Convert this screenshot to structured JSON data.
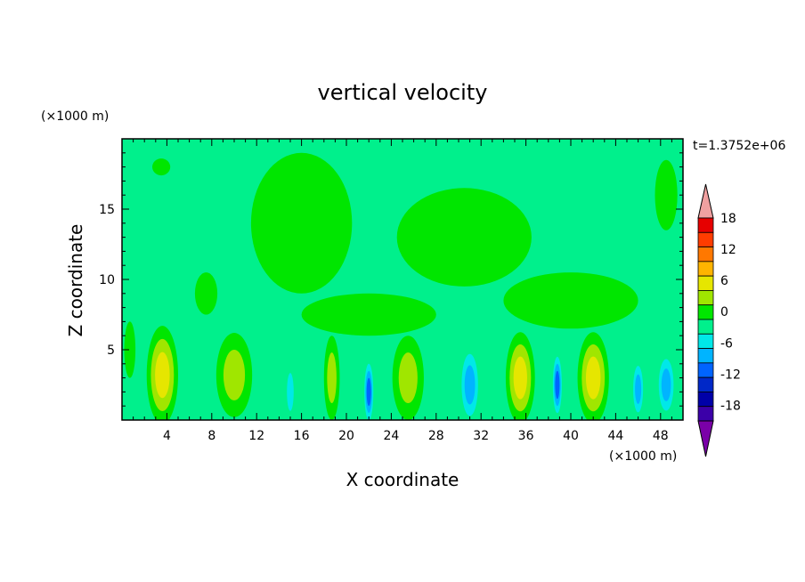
{
  "chart_data": {
    "type": "heatmap",
    "title": "vertical velocity",
    "xlabel": "X coordinate",
    "ylabel": "Z coordinate",
    "x_unit": "(×1000 m)",
    "y_unit": "(×1000 m)",
    "time_label": "t=1.3752e+06",
    "xlim": [
      0,
      50
    ],
    "ylim": [
      0,
      20
    ],
    "x_ticks": [
      4,
      8,
      12,
      16,
      20,
      24,
      28,
      32,
      36,
      40,
      44,
      48
    ],
    "y_ticks": [
      5,
      10,
      15
    ],
    "colorbar": {
      "ticks": [
        18,
        12,
        6,
        0,
        -6,
        -12,
        -18
      ],
      "levels": [
        -21,
        -18,
        -15,
        -12,
        -9,
        -6,
        -3,
        0,
        3,
        6,
        9,
        12,
        15,
        18,
        21
      ],
      "colors": [
        "#7a00a8",
        "#3b00a8",
        "#0000a8",
        "#0028c8",
        "#0064ff",
        "#00b4ff",
        "#00e8e8",
        "#00f08c",
        "#00e600",
        "#a0e600",
        "#e6e600",
        "#ffb400",
        "#ff7800",
        "#ff3c00",
        "#e60000",
        "#f0a0a0"
      ]
    },
    "background_color": "#00f08c",
    "features": [
      {
        "x": 3.6,
        "z": 3.2,
        "w": 2.8,
        "h": 7.0,
        "v": 8
      },
      {
        "x": 10.0,
        "z": 3.2,
        "w": 3.2,
        "h": 6.0,
        "v": 6
      },
      {
        "x": 15.0,
        "z": 2.0,
        "w": 1.0,
        "h": 4.5,
        "v": -6
      },
      {
        "x": 17.0,
        "z": 2.0,
        "w": 0.9,
        "h": 4.5,
        "v": -3
      },
      {
        "x": 18.7,
        "z": 3.0,
        "w": 1.4,
        "h": 6.0,
        "v": 5
      },
      {
        "x": 22.0,
        "z": 2.0,
        "w": 1.0,
        "h": 5.0,
        "v": -12
      },
      {
        "x": 25.5,
        "z": 3.0,
        "w": 2.8,
        "h": 6.0,
        "v": 7
      },
      {
        "x": 31.0,
        "z": 2.5,
        "w": 2.0,
        "h": 6.0,
        "v": -10
      },
      {
        "x": 35.5,
        "z": 3.0,
        "w": 2.6,
        "h": 6.5,
        "v": 10
      },
      {
        "x": 38.8,
        "z": 2.5,
        "w": 1.0,
        "h": 5.0,
        "v": -12
      },
      {
        "x": 42.0,
        "z": 3.0,
        "w": 2.8,
        "h": 6.5,
        "v": 9
      },
      {
        "x": 46.0,
        "z": 2.2,
        "w": 1.2,
        "h": 4.5,
        "v": -9
      },
      {
        "x": 48.5,
        "z": 2.5,
        "w": 1.8,
        "h": 5.0,
        "v": -8
      },
      {
        "x": 0.7,
        "z": 5.0,
        "w": 1.0,
        "h": 4.0,
        "v": 0.5
      },
      {
        "x": 16.0,
        "z": 14.0,
        "w": 9.0,
        "h": 10.0,
        "v": 1.5
      },
      {
        "x": 30.5,
        "z": 13.0,
        "w": 12.0,
        "h": 7.0,
        "v": 1.5
      },
      {
        "x": 40.0,
        "z": 8.5,
        "w": 12.0,
        "h": 4.0,
        "v": 1.0
      },
      {
        "x": 22.0,
        "z": 7.5,
        "w": 12.0,
        "h": 3.0,
        "v": 1.0
      },
      {
        "x": 3.5,
        "z": 18.0,
        "w": 1.6,
        "h": 1.2,
        "v": 3
      },
      {
        "x": 7.5,
        "z": 9.0,
        "w": 2.0,
        "h": 3.0,
        "v": 1.0
      },
      {
        "x": 48.5,
        "z": 16.0,
        "w": 2.0,
        "h": 5.0,
        "v": 1.5
      }
    ]
  }
}
